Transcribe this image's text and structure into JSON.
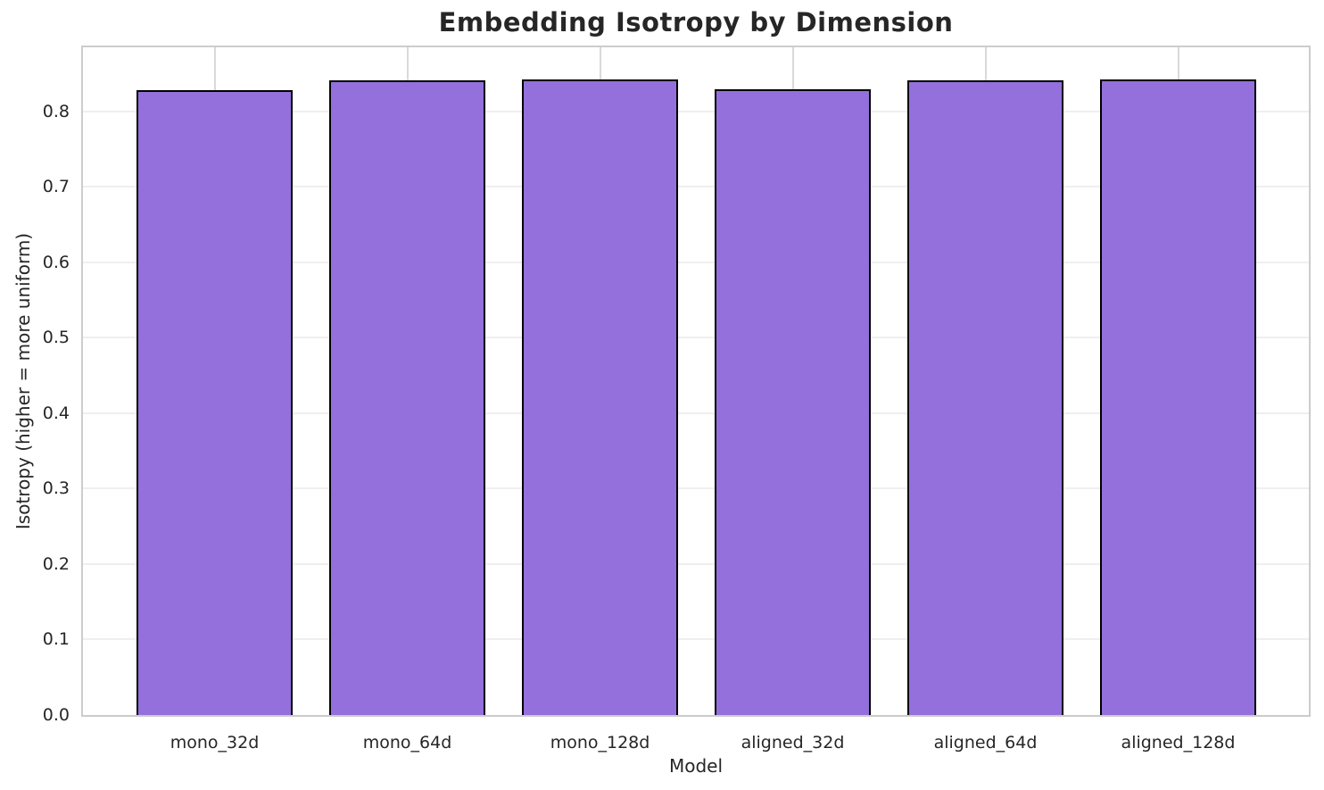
{
  "chart_data": {
    "type": "bar",
    "title": "Embedding Isotropy by Dimension",
    "xlabel": "Model",
    "ylabel": "Isotropy (higher = more uniform)",
    "categories": [
      "mono_32d",
      "mono_64d",
      "mono_128d",
      "aligned_32d",
      "aligned_64d",
      "aligned_128d"
    ],
    "values": [
      0.828,
      0.841,
      0.843,
      0.829,
      0.841,
      0.842
    ],
    "ylim": [
      0,
      0.885
    ],
    "yticks": [
      0.0,
      0.1,
      0.2,
      0.3,
      0.4,
      0.5,
      0.6,
      0.7,
      0.8
    ],
    "ytick_labels": [
      "0.0",
      "0.1",
      "0.2",
      "0.3",
      "0.4",
      "0.5",
      "0.6",
      "0.7",
      "0.8"
    ],
    "grid": true,
    "legend": null,
    "colors": {
      "bar_fill": "#9370DB",
      "bar_edge": "#000000",
      "grid_horizontal": "#efefef",
      "grid_vertical": "#d9d9d9",
      "spine": "#cccccc",
      "text": "#262626",
      "background": "#ffffff"
    }
  }
}
